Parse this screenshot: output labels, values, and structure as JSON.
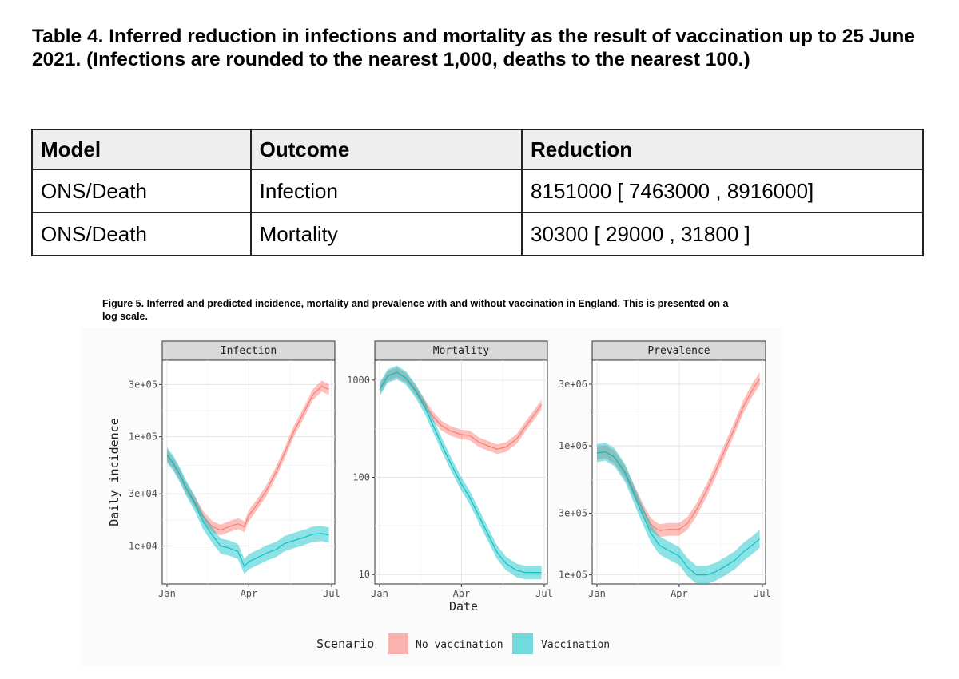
{
  "table_title": "Table 4. Inferred reduction in infections and mortality as the result of vaccination up to 25 June 2021. (Infections are rounded to the nearest 1,000, deaths to the nearest 100.)",
  "table": {
    "headers": [
      "Model",
      "Outcome",
      "Reduction"
    ],
    "rows": [
      [
        "ONS/Death",
        "Infection",
        "8151000 [ 7463000 , 8916000]"
      ],
      [
        "ONS/Death",
        "Mortality",
        "30300 [ 29000 , 31800 ]"
      ]
    ]
  },
  "figure_caption": "Figure 5. Inferred and predicted incidence, mortality and prevalence with and without vaccination in England. This is presented on a log scale.",
  "colors": {
    "no_vaccination": "#F8766D",
    "vaccination": "#00BFC4",
    "strip": "#d9d9d9"
  },
  "chart_data": {
    "type": "line",
    "title": "",
    "xlabel": "Date",
    "ylabel": "Daily incidence",
    "x_ticks": [
      "Jan",
      "Apr",
      "Jul"
    ],
    "scale": "log",
    "grid": true,
    "legend": {
      "title": "Scenario",
      "position": "bottom",
      "entries": [
        "No vaccination",
        "Vaccination"
      ]
    },
    "panels": [
      {
        "name": "Infection",
        "ylim": [
          4500,
          500000
        ],
        "y_ticks": [
          10000,
          30000,
          100000,
          300000
        ],
        "y_tick_labels": [
          "1e+04",
          "3e+04",
          "1e+05",
          "3e+05"
        ],
        "x": [
          "2021-01-01",
          "2021-01-08",
          "2021-01-15",
          "2021-01-22",
          "2021-02-01",
          "2021-02-10",
          "2021-02-20",
          "2021-03-01",
          "2021-03-10",
          "2021-03-20",
          "2021-03-27",
          "2021-04-01",
          "2021-04-10",
          "2021-04-20",
          "2021-05-01",
          "2021-05-10",
          "2021-05-20",
          "2021-06-01",
          "2021-06-10",
          "2021-06-20",
          "2021-06-28"
        ],
        "series": [
          {
            "name": "No vaccination",
            "values": [
              68000,
              57000,
              45000,
              34000,
              25000,
              18500,
              15000,
              14000,
              15000,
              16000,
              15000,
              19000,
              24000,
              32000,
              48000,
              70000,
              110000,
              170000,
              240000,
              290000,
              270000
            ]
          },
          {
            "name": "Vaccination",
            "values": [
              68000,
              57000,
              45000,
              34000,
              24000,
              16500,
              12500,
              10000,
              9600,
              8900,
              6500,
              7200,
              7800,
              8600,
              9300,
              10500,
              11200,
              12000,
              12800,
              13000,
              12600
            ]
          }
        ]
      },
      {
        "name": "Mortality",
        "ylim": [
          8,
          1600
        ],
        "y_ticks": [
          10,
          100,
          1000
        ],
        "y_tick_labels": [
          "10",
          "100",
          "1000"
        ],
        "x": [
          "2021-01-01",
          "2021-01-10",
          "2021-01-20",
          "2021-01-30",
          "2021-02-10",
          "2021-02-20",
          "2021-03-01",
          "2021-03-10",
          "2021-03-20",
          "2021-04-01",
          "2021-04-10",
          "2021-04-20",
          "2021-05-01",
          "2021-05-10",
          "2021-05-20",
          "2021-06-01",
          "2021-06-10",
          "2021-06-20",
          "2021-06-28"
        ],
        "series": [
          {
            "name": "No vaccination",
            "values": [
              800,
              1100,
              1200,
              1050,
              780,
              560,
              420,
              340,
              300,
              275,
              270,
              230,
              210,
              195,
              205,
              250,
              330,
              440,
              560
            ]
          },
          {
            "name": "Vaccination",
            "values": [
              800,
              1100,
              1200,
              1050,
              760,
              520,
              340,
              220,
              140,
              85,
              62,
              40,
              25,
              17,
              13,
              11,
              10.5,
              10.5,
              10.5
            ]
          }
        ]
      },
      {
        "name": "Prevalence",
        "ylim": [
          85000,
          4600000
        ],
        "y_ticks": [
          100000,
          300000,
          1000000,
          3000000
        ],
        "y_tick_labels": [
          "1e+05",
          "3e+05",
          "1e+06",
          "3e+06"
        ],
        "x": [
          "2021-01-01",
          "2021-01-10",
          "2021-01-20",
          "2021-02-01",
          "2021-02-10",
          "2021-02-20",
          "2021-03-01",
          "2021-03-10",
          "2021-03-20",
          "2021-04-01",
          "2021-04-10",
          "2021-04-20",
          "2021-05-01",
          "2021-05-10",
          "2021-05-20",
          "2021-06-01",
          "2021-06-10",
          "2021-06-20",
          "2021-06-28"
        ],
        "series": [
          {
            "name": "No vaccination",
            "values": [
              880000,
              900000,
              820000,
              620000,
              450000,
              320000,
              245000,
              220000,
              225000,
              225000,
              250000,
              320000,
              450000,
              620000,
              900000,
              1400000,
              2000000,
              2700000,
              3300000
            ]
          },
          {
            "name": "Vaccination",
            "values": [
              880000,
              900000,
              820000,
              610000,
              430000,
              290000,
              210000,
              170000,
              155000,
              140000,
              115000,
              100000,
              100000,
              105000,
              115000,
              130000,
              150000,
              170000,
              190000
            ]
          }
        ]
      }
    ]
  }
}
